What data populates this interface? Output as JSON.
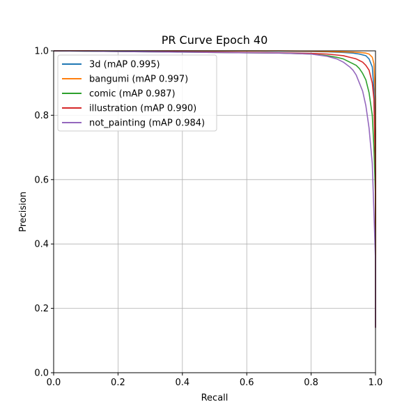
{
  "chart_data": {
    "type": "line",
    "title": "PR Curve Epoch 40",
    "xlabel": "Recall",
    "ylabel": "Precision",
    "xlim": [
      0.0,
      1.0
    ],
    "ylim": [
      0.0,
      1.0
    ],
    "grid": true,
    "legend_position": "top-left",
    "x_ticks": [
      "0.0",
      "0.2",
      "0.4",
      "0.6",
      "0.8",
      "1.0"
    ],
    "y_ticks": [
      "0.0",
      "0.2",
      "0.4",
      "0.6",
      "0.8",
      "1.0"
    ],
    "series": [
      {
        "name": "3d (mAP 0.995)",
        "color": "#1f77b4",
        "x": [
          0.0,
          0.1,
          0.2,
          0.3,
          0.4,
          0.5,
          0.6,
          0.7,
          0.8,
          0.85,
          0.9,
          0.93,
          0.95,
          0.97,
          0.98,
          0.99,
          0.995,
          1.0,
          1.0
        ],
        "y": [
          1.0,
          1.0,
          1.0,
          1.0,
          1.0,
          1.0,
          1.0,
          0.999,
          0.998,
          0.997,
          0.995,
          0.993,
          0.99,
          0.985,
          0.975,
          0.95,
          0.88,
          0.75,
          0.14
        ]
      },
      {
        "name": "bangumi (mAP 0.997)",
        "color": "#ff7f0e",
        "x": [
          0.0,
          0.1,
          0.2,
          0.3,
          0.4,
          0.5,
          0.6,
          0.7,
          0.8,
          0.85,
          0.9,
          0.93,
          0.95,
          0.97,
          0.98,
          0.99,
          0.995,
          1.0,
          1.0
        ],
        "y": [
          1.0,
          1.0,
          1.0,
          1.0,
          1.0,
          1.0,
          1.0,
          1.0,
          0.999,
          0.998,
          0.997,
          0.996,
          0.995,
          0.993,
          0.99,
          0.98,
          0.96,
          0.85,
          0.14
        ]
      },
      {
        "name": "comic (mAP 0.987)",
        "color": "#2ca02c",
        "x": [
          0.0,
          0.1,
          0.2,
          0.3,
          0.4,
          0.5,
          0.6,
          0.7,
          0.8,
          0.85,
          0.88,
          0.9,
          0.92,
          0.94,
          0.95,
          0.96,
          0.97,
          0.98,
          0.99,
          0.995,
          1.0,
          1.0
        ],
        "y": [
          1.0,
          0.999,
          0.998,
          0.997,
          0.996,
          0.995,
          0.994,
          0.993,
          0.99,
          0.985,
          0.98,
          0.975,
          0.965,
          0.955,
          0.945,
          0.93,
          0.91,
          0.87,
          0.8,
          0.7,
          0.55,
          0.14
        ]
      },
      {
        "name": "illustration (mAP 0.990)",
        "color": "#d62728",
        "x": [
          0.0,
          0.1,
          0.2,
          0.3,
          0.4,
          0.5,
          0.6,
          0.7,
          0.8,
          0.85,
          0.88,
          0.9,
          0.92,
          0.94,
          0.95,
          0.96,
          0.97,
          0.98,
          0.99,
          0.995,
          1.0,
          1.0
        ],
        "y": [
          1.0,
          1.0,
          0.999,
          0.998,
          0.997,
          0.996,
          0.995,
          0.994,
          0.992,
          0.99,
          0.987,
          0.985,
          0.98,
          0.975,
          0.97,
          0.965,
          0.955,
          0.94,
          0.9,
          0.85,
          0.62,
          0.14
        ]
      },
      {
        "name": "not_painting (mAP 0.984)",
        "color": "#9467bd",
        "x": [
          0.0,
          0.1,
          0.2,
          0.3,
          0.4,
          0.5,
          0.6,
          0.7,
          0.8,
          0.85,
          0.88,
          0.9,
          0.92,
          0.93,
          0.94,
          0.95,
          0.96,
          0.97,
          0.98,
          0.99,
          0.995,
          1.0,
          1.0
        ],
        "y": [
          1.0,
          0.999,
          0.998,
          0.997,
          0.996,
          0.995,
          0.994,
          0.993,
          0.99,
          0.983,
          0.975,
          0.965,
          0.95,
          0.94,
          0.925,
          0.9,
          0.875,
          0.83,
          0.76,
          0.65,
          0.5,
          0.35,
          0.14
        ]
      }
    ]
  }
}
